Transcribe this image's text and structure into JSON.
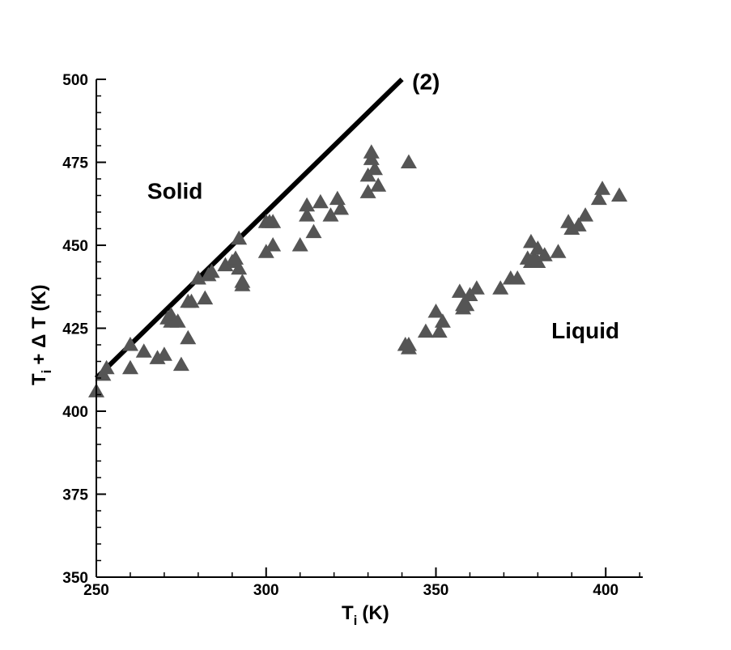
{
  "chart_data": {
    "type": "scatter",
    "title": "",
    "xlabel": {
      "main": "T",
      "sub": "i",
      "unit": "(K)"
    },
    "ylabel": {
      "main": "T",
      "sub": "i",
      "rest": "+ Δ T (K)"
    },
    "xlim": [
      250,
      410
    ],
    "ylim": [
      350,
      500
    ],
    "xticks": [
      250,
      300,
      350,
      400
    ],
    "yticks": [
      350,
      375,
      400,
      425,
      450,
      475,
      500
    ],
    "grid": false,
    "marker": "triangle",
    "marker_color": "#555555",
    "line_color": "#000000",
    "annotations": [
      {
        "text": "Solid",
        "x": 265,
        "y": 464
      },
      {
        "text": "Liquid",
        "x": 384,
        "y": 422
      },
      {
        "text": "(2)",
        "x": 343,
        "y": 497
      }
    ],
    "line": {
      "label": "(2)",
      "x": [
        250,
        340
      ],
      "y": [
        410,
        500
      ]
    },
    "series": [
      {
        "x": [
          250,
          252,
          253,
          260,
          260,
          264,
          268,
          270,
          271,
          272,
          272,
          274,
          275,
          277,
          277,
          278,
          280,
          282,
          283,
          284,
          288,
          290,
          291,
          292,
          292,
          293,
          293,
          300,
          300,
          301,
          302,
          302,
          310,
          312,
          312,
          314,
          316,
          319,
          321,
          322,
          330,
          330,
          331,
          331,
          332,
          333,
          342
        ],
        "y": [
          406,
          411,
          413,
          420,
          413,
          418,
          416,
          417,
          428,
          427,
          429,
          427,
          414,
          433,
          422,
          433,
          440,
          434,
          441,
          442,
          444,
          445,
          446,
          443,
          452,
          439,
          438,
          457,
          448,
          457,
          457,
          450,
          450,
          462,
          459,
          454,
          463,
          459,
          464,
          461,
          466,
          471,
          476,
          478,
          473,
          468,
          475
        ]
      },
      {
        "x": [
          341,
          342,
          342,
          347,
          350,
          351,
          352,
          357,
          358,
          358,
          359,
          360,
          362,
          369,
          372,
          374,
          377,
          378,
          378,
          379,
          380,
          380,
          382,
          386,
          389,
          390,
          392,
          394,
          398,
          399,
          404
        ],
        "y": [
          420,
          419,
          420,
          424,
          430,
          424,
          427,
          436,
          432,
          431,
          432,
          435,
          437,
          437,
          440,
          440,
          446,
          445,
          451,
          446,
          449,
          445,
          447,
          448,
          457,
          455,
          456,
          459,
          464,
          467,
          465
        ]
      }
    ]
  }
}
